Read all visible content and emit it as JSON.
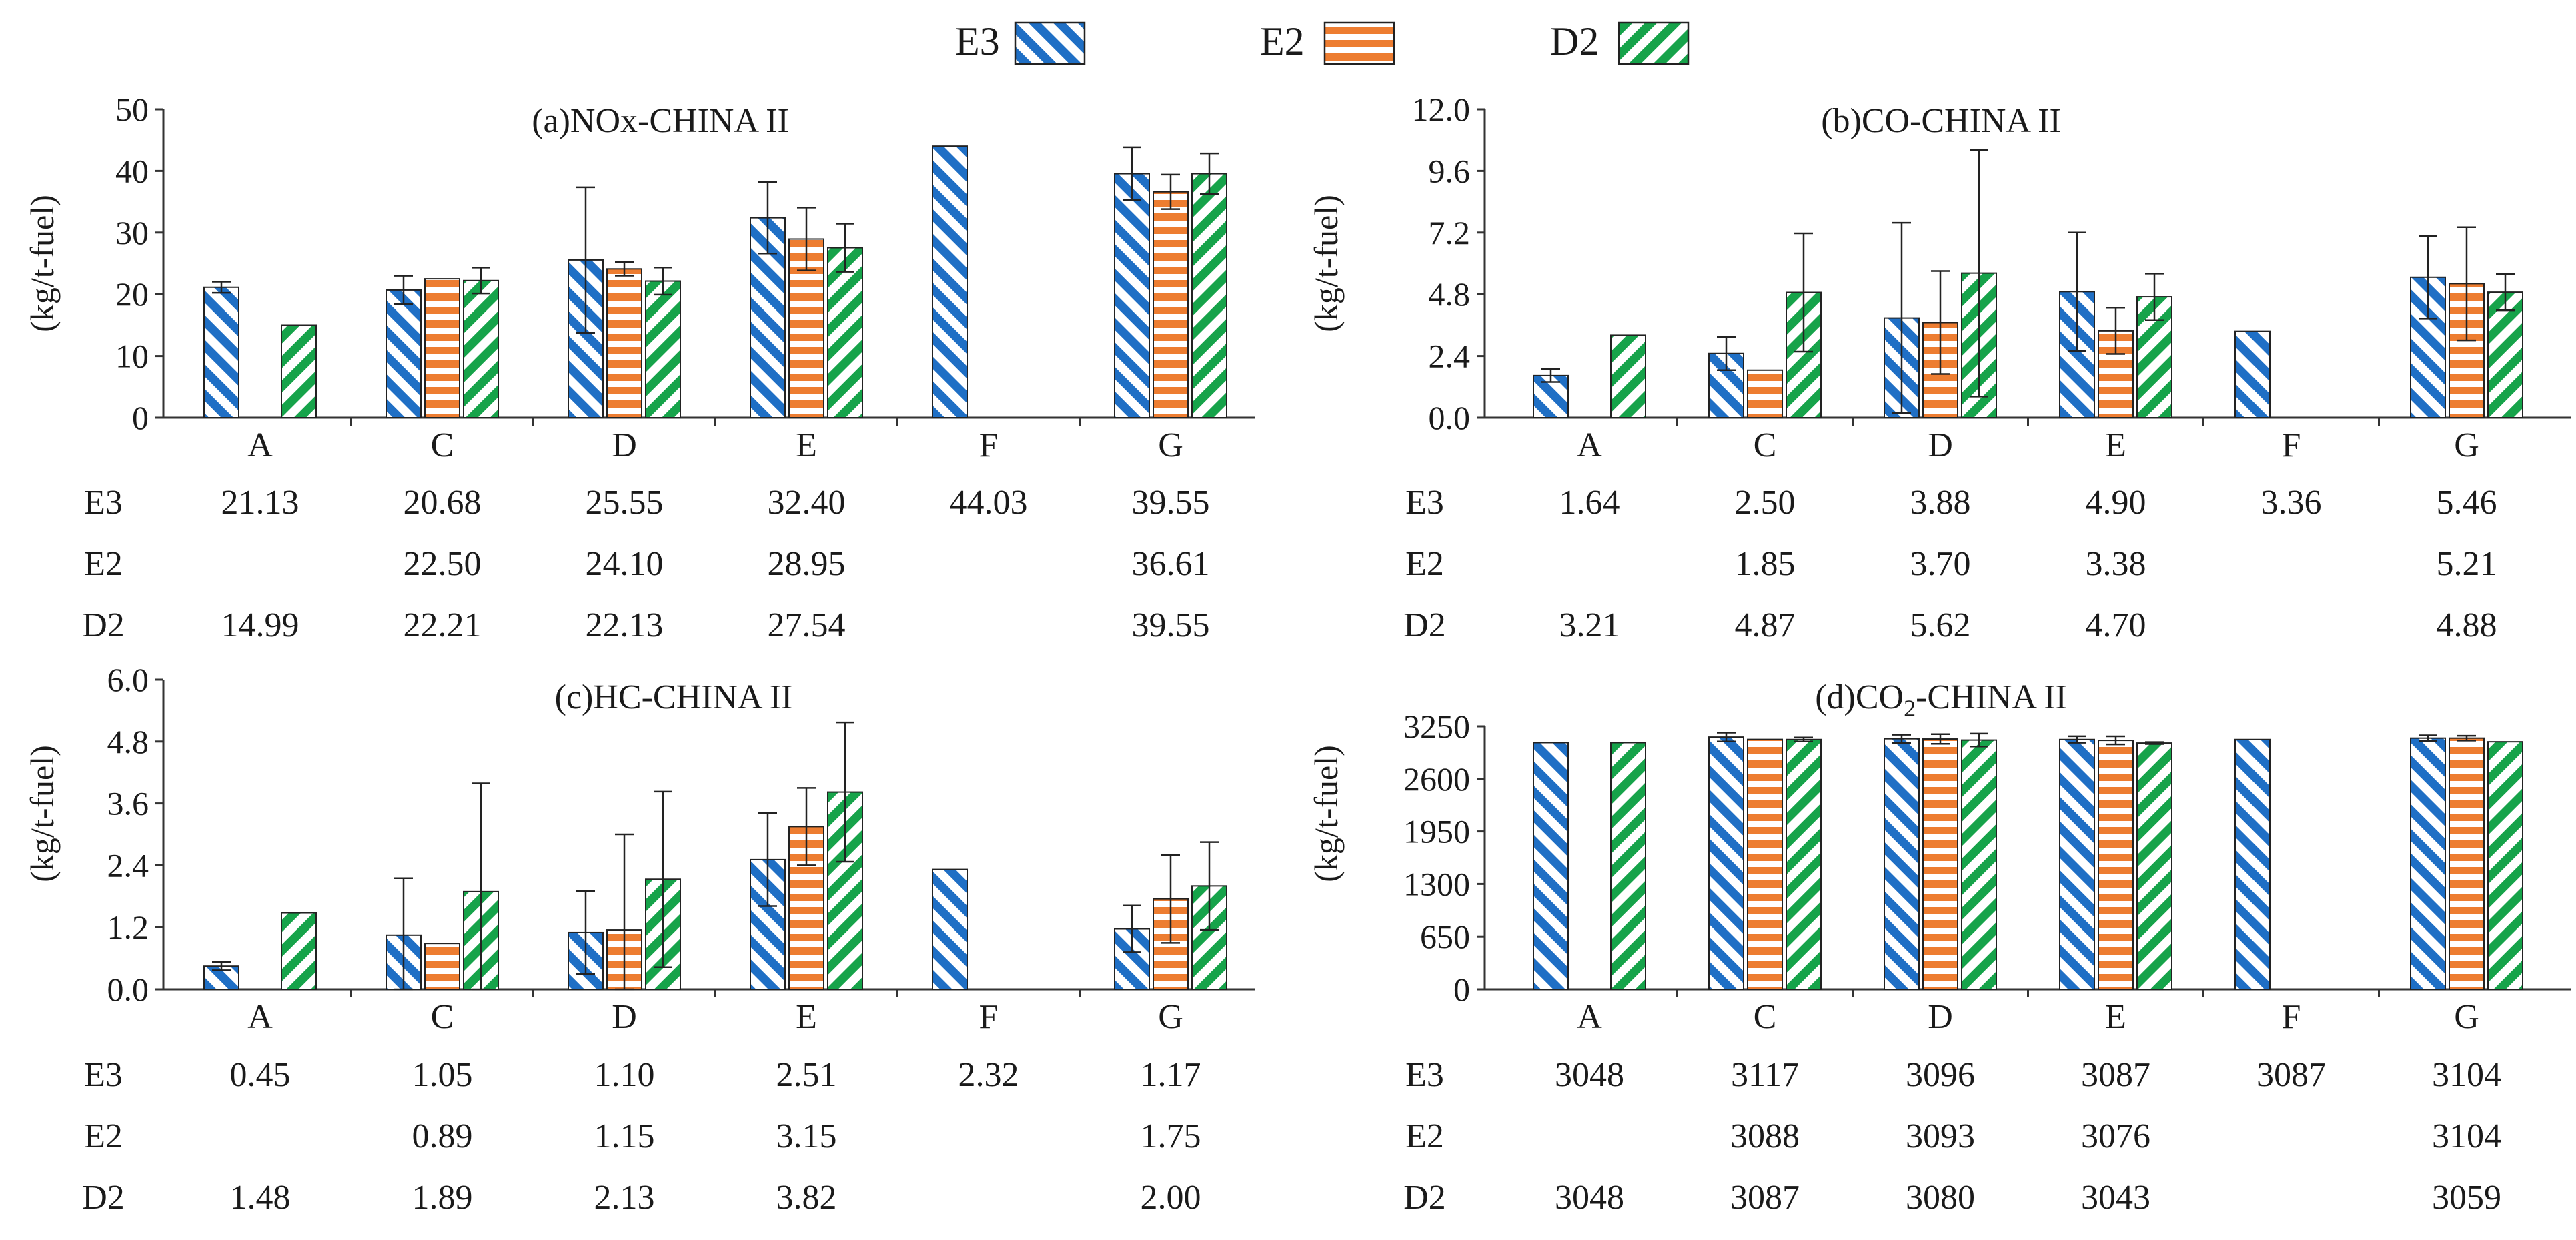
{
  "legend": [
    {
      "name": "E3",
      "color": "#1f6fc5",
      "pattern": "diagonal"
    },
    {
      "name": "E2",
      "color": "#ed7d31",
      "pattern": "horizontal"
    },
    {
      "name": "D2",
      "color": "#16a34a",
      "pattern": "diagonal"
    }
  ],
  "chart_data": [
    {
      "type": "bar",
      "title": "(a)NOx-CHINA II",
      "title_main": "(a)NOx-CHINA II",
      "title_sub": "",
      "title_post": "",
      "ylabel": "(kg/t-fuel)",
      "ylim": [
        0,
        50
      ],
      "yticks": [
        "0",
        "10",
        "20",
        "30",
        "40",
        "50"
      ],
      "categories": [
        "A",
        "C",
        "D",
        "E",
        "F",
        "G"
      ],
      "series": [
        {
          "name": "E3",
          "values": [
            21.13,
            20.68,
            25.55,
            32.4,
            44.03,
            39.55
          ],
          "labels": [
            "21.13",
            "20.68",
            "25.55",
            "32.40",
            "44.03",
            "39.55"
          ],
          "errors": [
            0.9,
            2.3,
            11.8,
            5.8,
            null,
            4.3
          ]
        },
        {
          "name": "E2",
          "values": [
            null,
            22.5,
            24.1,
            28.95,
            null,
            36.61
          ],
          "labels": [
            "",
            "22.50",
            "24.10",
            "28.95",
            "",
            "36.61"
          ],
          "errors": [
            null,
            null,
            1.1,
            5.1,
            null,
            2.8
          ]
        },
        {
          "name": "D2",
          "values": [
            14.99,
            22.21,
            22.13,
            27.54,
            null,
            39.55
          ],
          "labels": [
            "14.99",
            "22.21",
            "22.13",
            "27.54",
            "",
            "39.55"
          ],
          "errors": [
            null,
            2.1,
            2.2,
            3.9,
            null,
            3.3
          ]
        }
      ]
    },
    {
      "type": "bar",
      "title": "(b)CO-CHINA II",
      "title_main": "(b)CO-CHINA II",
      "title_sub": "",
      "title_post": "",
      "ylabel": "(kg/t-fuel)",
      "ylim": [
        0,
        12
      ],
      "yticks": [
        "0.0",
        "2.4",
        "4.8",
        "7.2",
        "9.6",
        "12.0"
      ],
      "categories": [
        "A",
        "C",
        "D",
        "E",
        "F",
        "G"
      ],
      "series": [
        {
          "name": "E3",
          "values": [
            1.64,
            2.5,
            3.88,
            4.9,
            3.36,
            5.46
          ],
          "labels": [
            "1.64",
            "2.50",
            "3.88",
            "4.90",
            "3.36",
            "5.46"
          ],
          "errors": [
            0.25,
            0.65,
            3.7,
            2.3,
            null,
            1.6
          ]
        },
        {
          "name": "E2",
          "values": [
            null,
            1.85,
            3.7,
            3.38,
            null,
            5.21
          ],
          "labels": [
            "",
            "1.85",
            "3.70",
            "3.38",
            "",
            "5.21"
          ],
          "errors": [
            null,
            null,
            2.0,
            0.9,
            null,
            2.2
          ]
        },
        {
          "name": "D2",
          "values": [
            3.21,
            4.87,
            5.62,
            4.7,
            null,
            4.88
          ],
          "labels": [
            "3.21",
            "4.87",
            "5.62",
            "4.70",
            "",
            "4.88"
          ],
          "errors": [
            null,
            2.3,
            4.8,
            0.9,
            null,
            0.7
          ]
        }
      ]
    },
    {
      "type": "bar",
      "title": "(c)HC-CHINA II",
      "title_main": "(c)HC-CHINA II",
      "title_sub": "",
      "title_post": "",
      "ylabel": "(kg/t-fuel)",
      "ylim": [
        0,
        6
      ],
      "yticks": [
        "0.0",
        "1.2",
        "2.4",
        "3.6",
        "4.8",
        "6.0"
      ],
      "categories": [
        "A",
        "C",
        "D",
        "E",
        "F",
        "G"
      ],
      "series": [
        {
          "name": "E3",
          "values": [
            0.45,
            1.05,
            1.1,
            2.51,
            2.32,
            1.17
          ],
          "labels": [
            "0.45",
            "1.05",
            "1.10",
            "2.51",
            "2.32",
            "1.17"
          ],
          "errors": [
            0.08,
            1.1,
            0.8,
            0.9,
            null,
            0.45
          ]
        },
        {
          "name": "E2",
          "values": [
            null,
            0.89,
            1.15,
            3.15,
            null,
            1.75
          ],
          "labels": [
            "",
            "0.89",
            "1.15",
            "3.15",
            "",
            "1.75"
          ],
          "errors": [
            null,
            null,
            1.85,
            0.75,
            null,
            0.85
          ]
        },
        {
          "name": "D2",
          "values": [
            1.48,
            1.89,
            2.13,
            3.82,
            null,
            2.0
          ],
          "labels": [
            "1.48",
            "1.89",
            "2.13",
            "3.82",
            "",
            "2.00"
          ],
          "errors": [
            null,
            2.1,
            1.7,
            1.35,
            null,
            0.85
          ]
        }
      ]
    },
    {
      "type": "bar",
      "title": "(d)CO2-CHINA II",
      "title_main": "(d)CO",
      "title_sub": "2",
      "title_post": "-CHINA II",
      "ylabel": "(kg/t-fuel)",
      "ylim": [
        0,
        3250
      ],
      "yticks": [
        "0",
        "650",
        "1300",
        "1950",
        "2600",
        "3250"
      ],
      "categories": [
        "A",
        "C",
        "D",
        "E",
        "F",
        "G"
      ],
      "series": [
        {
          "name": "E3",
          "values": [
            3048,
            3117,
            3096,
            3087,
            3087,
            3104
          ],
          "labels": [
            "3048",
            "3117",
            "3096",
            "3087",
            "3087",
            "3104"
          ],
          "errors": [
            null,
            55,
            50,
            40,
            null,
            35
          ]
        },
        {
          "name": "E2",
          "values": [
            null,
            3088,
            3093,
            3076,
            null,
            3104
          ],
          "labels": [
            "",
            "3088",
            "3093",
            "3076",
            "",
            "3104"
          ],
          "errors": [
            null,
            null,
            60,
            50,
            null,
            30
          ]
        },
        {
          "name": "D2",
          "values": [
            3048,
            3087,
            3080,
            3043,
            null,
            3059
          ],
          "labels": [
            "3048",
            "3087",
            "3080",
            "3043",
            "",
            "3059"
          ],
          "errors": [
            null,
            25,
            80,
            12,
            null,
            null
          ]
        }
      ]
    }
  ]
}
